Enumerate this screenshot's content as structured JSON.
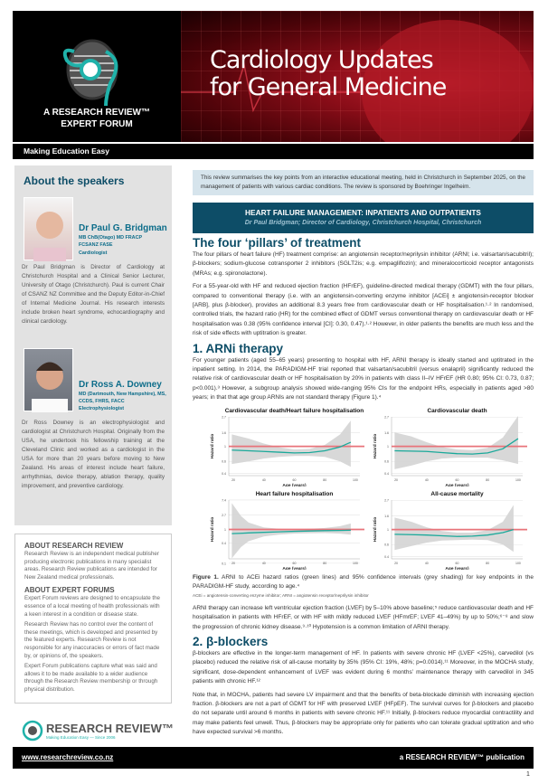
{
  "header": {
    "title_line1": "Cardiology Updates",
    "title_line2": "for General Medicine",
    "forum_line1": "A RESEARCH REVIEW™",
    "forum_line2": "EXPERT FORUM",
    "tagline": "Making Education Easy"
  },
  "sidebar": {
    "heading": "About the speakers",
    "speakers": [
      {
        "name": "Dr Paul G. Bridgman",
        "credentials": "MB ChB(Otago) MD FRACP FCSANZ FASE",
        "role": "Cardiologist",
        "bio": "Dr Paul Bridgman is Director of Cardiology at Christchurch Hospital and a Clinical Senior Lecturer, University of Otago (Christchurch). Paul is current Chair of CSANZ NZ Committee and the Deputy Editor-in-Chief of Internal Medicine Journal. His research interests include broken heart syndrome, echocardiography and clinical cardiology."
      },
      {
        "name": "Dr Ross A. Downey",
        "credentials": "MD (Dartmouth, New Hampshire), MS, CCDS, FHRS, FACC",
        "role": "Electrophysiologist",
        "bio": "Dr Ross Downey is an electrophysiologist and cardiologist at Christchurch Hospital. Originally from the USA, he undertook his fellowship training at the Cleveland Clinic and worked as a cardiologist in the USA for more than 20 years before moving to New Zealand. His areas of interest include heart failure, arrhythmias, device therapy, ablation therapy, quality improvement, and preventive cardiology."
      }
    ]
  },
  "about": {
    "rr_heading": "ABOUT RESEARCH REVIEW",
    "rr_text": "Research Review is an independent medical publisher producing electronic publications in many specialist areas. Research Review publications are intended for New Zealand medical professionals.",
    "ef_heading": "ABOUT EXPERT FORUMS",
    "ef_p1": "Expert Forum reviews are designed to encapsulate the essence of a local meeting of health professionals with a keen interest in a condition or disease state.",
    "ef_p2": "Research Review has no control over the content of these meetings, which is developed and presented by the featured experts. Research Review is not responsible for any inaccuracies or errors of fact made by, or opinions of, the speakers.",
    "ef_p3": "Expert Forum publications capture what was said and allows it to be made available to a wider audience through the Research Review membership or through physical distribution."
  },
  "logo": {
    "text": "RESEARCH REVIEW™",
    "sub": "Making Education Easy — Since 2006"
  },
  "intro": "This review summarises the key points from an interactive educational meeting, held in Christchurch in September 2025, on the management of patients with various cardiac conditions. The review is sponsored by Boehringer Ingelheim.",
  "banner": {
    "title": "HEART FAILURE MANAGEMENT: INPATIENTS AND OUTPATIENTS",
    "subtitle": "Dr Paul Bridgman; Director of Cardiology, Christchurch Hospital, Christchurch"
  },
  "sections": {
    "pillars_heading": "The four ‘pillars’ of treatment",
    "pillars_p1": "The four pillars of heart failure (HF) treatment comprise: an angiotensin receptor/neprilysin inhibitor (ARNI; i.e. valsartan/sacubitril); β-blockers; sodium-glucose cotransporter 2 inhibitors (SGLT2is; e.g. empagliflozin); and mineralocorticoid receptor antagonists (MRAs; e.g. spironolactone).",
    "pillars_p2": "For a 55-year-old with HF and reduced ejection fraction (HFrEF), guideline-directed medical therapy (GDMT) with the four pillars, compared to conventional therapy (i.e. with an angiotensin-converting enzyme inhibitor [ACEi] ± angiotensin-receptor blocker [ARB], plus β-blocker), provides an additional 8.3 years free from cardiovascular death or HF hospitalisation.¹·² In randomised, controlled trials, the hazard ratio (HR) for the combined effect of GDMT versus conventional therapy on cardiovascular death or HF hospitalisation was 0.38 (95% confidence interval [CI]: 0.30, 0.47).¹·² However, in older patients the benefits are much less and the risk of side effects with uptitration is greater.",
    "arni_heading": "1. ARNi therapy",
    "arni_p1": "For younger patients (aged 55–65 years) presenting to hospital with HF, ARNI therapy is ideally started and uptitrated in the inpatient setting. In 2014, the PARADIGM-HF trial reported that valsartan/sacubitril (versus enalapril) significantly reduced the relative risk of cardiovascular death or HF hospitalisation by 20% in patients with class II–IV HFrEF (HR 0.80; 95% CI: 0.73, 0.87; p<0.001).³ However, a subgroup analysis showed wide-ranging 95% CIs for the endpoint HRs, especially in patients aged >80 years; in that that age group ARNIs are not standard therapy (Figure 1).⁴",
    "figure_label": "Figure 1.",
    "figure_caption": " ARNI to ACEi hazard ratios (green lines) and 95% confidence intervals (grey shading) for key endpoints in the PARADIGM-HF study, according to age.⁴",
    "figure_abbrev": "ACEi = angiotensin-converting enzyme inhibitor; ARNI = angiotensin receptor/neprilysin inhibitor",
    "arni_p2": "ARNI therapy can increase left ventricular ejection fraction (LVEF) by 5–10% above baseline;⁵ reduce cardiovascular death and HF hospitalisation in patients with HFrEF, or with HF with mildly reduced LVEF (HFmrEF; LVEF 41–49%) by up to 50%;⁶⁻⁸ and slow the progression of chronic kidney disease.⁹·¹⁰ Hypotension is a common limitation of ARNI therapy.",
    "bb_heading": "2. β-blockers",
    "bb_p1": "β-blockers are effective in the longer-term management of HF. In patients with severe chronic HF (LVEF <25%), carvedilol (vs placebo) reduced the relative risk of all-cause mortality by 35% (95% CI: 19%, 48%; p=0.0014).¹¹ Moreover, in the MOCHA study, significant, dose-dependent enhancement of LVEF was evident during 6 months’ maintenance therapy with carvedilol in 345 patients with chronic HF.¹²",
    "bb_p2": "Note that, in MOCHA, patients had severe LV impairment and that the benefits of beta-blockade diminish with increasing ejection fraction. β-blockers are not a part of GDMT for HF with preserved LVEF (HFpEF). The survival curves for β-blockers and placebo do not separate until around 6 months in patients with severe chronic HF.¹¹ Initially, β-blockers reduce myocardial contractility and may make patients feel unwell. Thus, β-blockers may be appropriate only for patients who can tolerate gradual uptitration and who have expected survival >6 months."
  },
  "footer": {
    "url": "www.researchreview.co.nz",
    "publication": "a RESEARCH REVIEW™ publication",
    "page": "1"
  },
  "colors": {
    "teal_dark": "#0d4d67",
    "hr_line": "#1aa99a",
    "reference_line": "#e8737a",
    "ci_shading": "#d4d4d4"
  },
  "chart_data": [
    {
      "type": "line",
      "title": "Cardiovascular death/Heart failure hospitalisation",
      "xlabel": "Age (years)",
      "ylabel": "Hazard ratio",
      "y_scale": "log",
      "xlim": [
        17,
        103
      ],
      "x_ticks": [
        20,
        40,
        60,
        80,
        100
      ],
      "y_ticks": [
        0.4,
        0.6,
        1,
        1.6,
        2.7
      ],
      "ylim": [
        0.37,
        2.72
      ],
      "reference": 1,
      "x": [
        19,
        30,
        40,
        50,
        60,
        70,
        80,
        90,
        97
      ],
      "hr": [
        0.88,
        0.86,
        0.84,
        0.82,
        0.8,
        0.81,
        0.86,
        0.98,
        1.15
      ],
      "ci_low": [
        0.55,
        0.6,
        0.66,
        0.7,
        0.72,
        0.72,
        0.7,
        0.6,
        0.5
      ],
      "ci_high": [
        1.5,
        1.3,
        1.1,
        0.97,
        0.9,
        0.92,
        1.05,
        1.5,
        2.4
      ]
    },
    {
      "type": "line",
      "title": "Cardiovascular death",
      "xlabel": "Age (years)",
      "ylabel": "Hazard ratio",
      "y_scale": "log",
      "xlim": [
        17,
        103
      ],
      "x_ticks": [
        20,
        40,
        60,
        80,
        100
      ],
      "y_ticks": [
        0.4,
        0.6,
        1,
        1.6,
        2.7
      ],
      "ylim": [
        0.37,
        2.72
      ],
      "reference": 1,
      "x": [
        19,
        30,
        40,
        50,
        60,
        70,
        80,
        90,
        100
      ],
      "hr": [
        0.86,
        0.85,
        0.84,
        0.81,
        0.78,
        0.77,
        0.8,
        0.92,
        1.3
      ],
      "ci_low": [
        0.46,
        0.52,
        0.6,
        0.66,
        0.68,
        0.68,
        0.68,
        0.62,
        0.55
      ],
      "ci_high": [
        1.6,
        1.4,
        1.15,
        0.98,
        0.9,
        0.88,
        0.95,
        1.35,
        2.8
      ]
    },
    {
      "type": "line",
      "title": "Heart failure hospitalisation",
      "xlabel": "Age (years)",
      "ylabel": "Hazard ratio",
      "y_scale": "log",
      "xlim": [
        17,
        103
      ],
      "x_ticks": [
        20,
        40,
        60,
        80,
        100
      ],
      "y_ticks": [
        0.1,
        0.4,
        1,
        2.7,
        7.4
      ],
      "ylim": [
        0.135,
        7.39
      ],
      "reference": 1,
      "x": [
        19,
        25,
        30,
        40,
        50,
        60,
        70,
        80,
        90,
        97
      ],
      "hr": [
        0.75,
        0.77,
        0.79,
        0.82,
        0.85,
        0.88,
        0.9,
        0.92,
        0.93,
        0.95
      ],
      "ci_low": [
        0.14,
        0.3,
        0.45,
        0.62,
        0.7,
        0.75,
        0.77,
        0.78,
        0.75,
        0.7
      ],
      "ci_high": [
        6,
        2.5,
        1.6,
        1.15,
        1.05,
        1.02,
        1.05,
        1.1,
        1.25,
        1.5
      ]
    },
    {
      "type": "line",
      "title": "All-cause mortality",
      "xlabel": "Age (years)",
      "ylabel": "Hazard ratio",
      "y_scale": "log",
      "xlim": [
        17,
        103
      ],
      "x_ticks": [
        20,
        40,
        60,
        80,
        100
      ],
      "y_ticks": [
        0.4,
        0.6,
        1,
        1.6,
        2.7
      ],
      "ylim": [
        0.37,
        2.72
      ],
      "reference": 1,
      "x": [
        19,
        30,
        40,
        50,
        60,
        70,
        80,
        90,
        97
      ],
      "hr": [
        0.85,
        0.84,
        0.83,
        0.81,
        0.79,
        0.8,
        0.83,
        0.9,
        1.0
      ],
      "ci_low": [
        0.5,
        0.57,
        0.64,
        0.69,
        0.7,
        0.71,
        0.7,
        0.6,
        0.47
      ],
      "ci_high": [
        1.5,
        1.3,
        1.08,
        0.95,
        0.9,
        0.9,
        0.98,
        1.3,
        2.3
      ]
    }
  ]
}
